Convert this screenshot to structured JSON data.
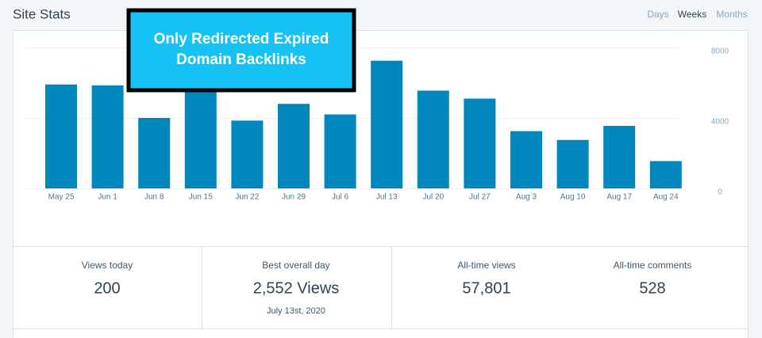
{
  "header": {
    "title": "Site Stats",
    "tabs": [
      "Days",
      "Weeks",
      "Months"
    ],
    "active_tab": 1
  },
  "overlay": {
    "lines": [
      "Only Redirected Expired",
      "Domain Backlinks"
    ]
  },
  "chart_data": {
    "type": "bar",
    "categories": [
      "May 25",
      "Jun 1",
      "Jun 8",
      "Jun 15",
      "Jun 22",
      "Jun 29",
      "Jul 6",
      "Jul 13",
      "Jul 20",
      "Jul 27",
      "Aug 3",
      "Aug 10",
      "Aug 17",
      "Aug 24"
    ],
    "values": [
      5900,
      5850,
      4000,
      5700,
      3850,
      4800,
      4200,
      7250,
      5550,
      5100,
      3250,
      2750,
      3550,
      1550
    ],
    "color": "#0087be",
    "ylim": [
      0,
      8000
    ],
    "yticks": [
      0,
      4000,
      8000
    ],
    "grid": true
  },
  "stats": [
    {
      "label": "Views today",
      "value": "200"
    },
    {
      "label": "Best overall day",
      "value": "2,552 Views",
      "sub": "July 13st, 2020"
    },
    {
      "label": "All-time views",
      "value": "57,801"
    },
    {
      "label": "All-time comments",
      "value": "528"
    }
  ]
}
